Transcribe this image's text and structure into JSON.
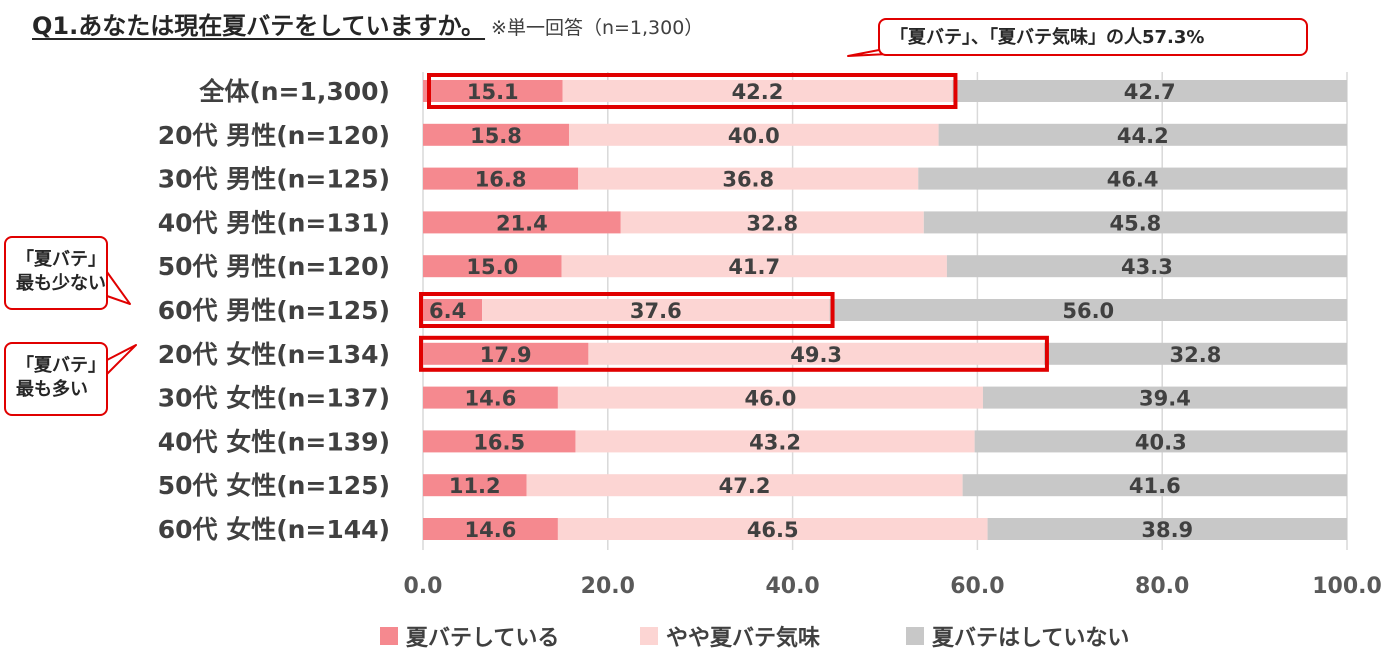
{
  "title": {
    "main": "Q1.あなたは現在夏バテをしていますか。",
    "note": "※単一回答（n=1,300）"
  },
  "annotations": {
    "top": "「夏バテ」、「夏バテ気味」の人57.3%",
    "least": [
      "「夏バテ」",
      "最も少ない"
    ],
    "most": [
      "「夏バテ」",
      "最も多い"
    ]
  },
  "colors": {
    "series1": "#f5898f",
    "series2": "#fcd5d3",
    "series3": "#c8c8c8",
    "highlight": "#e00000"
  },
  "chart_data": {
    "type": "bar",
    "orientation": "horizontal",
    "stacked": true,
    "title": "Q1.あなたは現在夏バテをしていますか。",
    "categories": [
      "全体(n=1,300)",
      "20代 男性(n=120)",
      "30代 男性(n=125)",
      "40代 男性(n=131)",
      "50代 男性(n=120)",
      "60代 男性(n=125)",
      "20代 女性(n=134)",
      "30代 女性(n=137)",
      "40代 女性(n=139)",
      "50代 女性(n=125)",
      "60代 女性(n=144)"
    ],
    "series": [
      {
        "name": "夏バテしている",
        "values": [
          15.1,
          15.8,
          16.8,
          21.4,
          15.0,
          6.4,
          17.9,
          14.6,
          16.5,
          11.2,
          14.6
        ]
      },
      {
        "name": "やや夏バテ気味",
        "values": [
          42.2,
          40.0,
          36.8,
          32.8,
          41.7,
          37.6,
          49.3,
          46.0,
          43.2,
          47.2,
          46.5
        ]
      },
      {
        "name": "夏バテはしていない",
        "values": [
          42.7,
          44.2,
          46.4,
          45.8,
          43.3,
          56.0,
          32.8,
          39.4,
          40.3,
          41.6,
          38.9
        ]
      }
    ],
    "xlim": [
      0,
      100
    ],
    "xticks": [
      "0.0",
      "20.0",
      "40.0",
      "60.0",
      "80.0",
      "100.0"
    ],
    "grid": "vertical",
    "legend": "bottom",
    "highlighted_rows": [
      0,
      5,
      6
    ]
  }
}
